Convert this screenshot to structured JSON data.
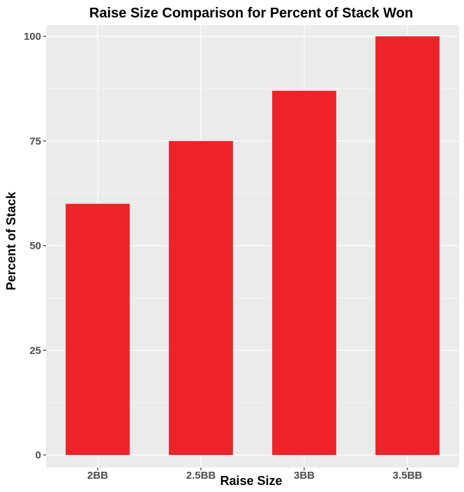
{
  "chart_data": {
    "type": "bar",
    "title": "Raise Size Comparison for Percent of Stack Won",
    "xlabel": "Raise Size",
    "ylabel": "Percent of Stack",
    "categories": [
      "2BB",
      "2.5BB",
      "3BB",
      "3.5BB"
    ],
    "values": [
      60,
      75,
      87,
      100
    ],
    "ylim": [
      0,
      100
    ],
    "yticks": [
      0,
      25,
      50,
      75,
      100
    ],
    "grid": true,
    "legend": "none",
    "colors": {
      "bar": "#ee2229",
      "panel_background": "#ebebeb",
      "gridline": "#ffffff",
      "tick_text": "#4d4d4d",
      "title_text": "#000000"
    }
  }
}
